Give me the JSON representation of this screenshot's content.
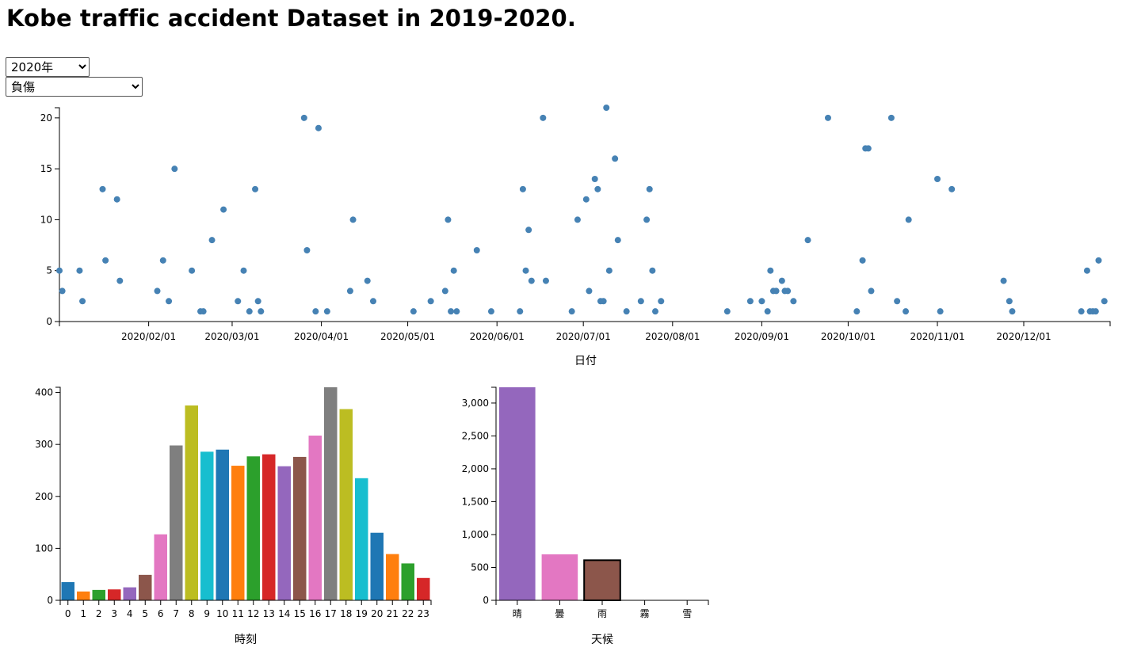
{
  "page": {
    "title": "Kobe traffic accident Dataset in 2019-2020."
  },
  "controls": {
    "year_select": {
      "selected": "2020年",
      "options": [
        "2020年"
      ]
    },
    "injury_select": {
      "selected": "負傷",
      "options": [
        "負傷"
      ]
    }
  },
  "chart_data": [
    {
      "type": "scatter",
      "xlabel": "日付",
      "ylabel": "",
      "xlim": [
        "2020-01-01",
        "2020-12-31"
      ],
      "ylim": [
        0,
        21
      ],
      "y_ticks": [
        0,
        5,
        10,
        15,
        20
      ],
      "x_tick_labels": [
        "2020/02/01",
        "2020/03/01",
        "2020/04/01",
        "2020/05/01",
        "2020/06/01",
        "2020/07/01",
        "2020/08/01",
        "2020/09/01",
        "2020/10/01",
        "2020/11/01",
        "2020/12/01"
      ],
      "point_color": "#4682b4",
      "points": [
        [
          "2020-01-01",
          5
        ],
        [
          "2020-01-02",
          3
        ],
        [
          "2020-01-08",
          5
        ],
        [
          "2020-01-09",
          2
        ],
        [
          "2020-01-16",
          13
        ],
        [
          "2020-01-17",
          6
        ],
        [
          "2020-01-21",
          12
        ],
        [
          "2020-01-22",
          4
        ],
        [
          "2020-02-04",
          3
        ],
        [
          "2020-02-06",
          6
        ],
        [
          "2020-02-08",
          2
        ],
        [
          "2020-02-10",
          15
        ],
        [
          "2020-02-16",
          5
        ],
        [
          "2020-02-19",
          1
        ],
        [
          "2020-02-20",
          1
        ],
        [
          "2020-02-23",
          8
        ],
        [
          "2020-02-27",
          11
        ],
        [
          "2020-03-03",
          2
        ],
        [
          "2020-03-05",
          5
        ],
        [
          "2020-03-07",
          1
        ],
        [
          "2020-03-09",
          13
        ],
        [
          "2020-03-10",
          2
        ],
        [
          "2020-03-11",
          1
        ],
        [
          "2020-03-26",
          20
        ],
        [
          "2020-03-27",
          7
        ],
        [
          "2020-03-30",
          1
        ],
        [
          "2020-03-31",
          19
        ],
        [
          "2020-04-03",
          1
        ],
        [
          "2020-04-11",
          3
        ],
        [
          "2020-04-12",
          10
        ],
        [
          "2020-04-17",
          4
        ],
        [
          "2020-04-19",
          2
        ],
        [
          "2020-05-03",
          1
        ],
        [
          "2020-05-09",
          2
        ],
        [
          "2020-05-14",
          3
        ],
        [
          "2020-05-15",
          10
        ],
        [
          "2020-05-16",
          1
        ],
        [
          "2020-05-17",
          5
        ],
        [
          "2020-05-18",
          1
        ],
        [
          "2020-05-25",
          7
        ],
        [
          "2020-05-30",
          1
        ],
        [
          "2020-06-09",
          1
        ],
        [
          "2020-06-10",
          13
        ],
        [
          "2020-06-11",
          5
        ],
        [
          "2020-06-12",
          9
        ],
        [
          "2020-06-13",
          4
        ],
        [
          "2020-06-17",
          20
        ],
        [
          "2020-06-18",
          4
        ],
        [
          "2020-06-27",
          1
        ],
        [
          "2020-06-29",
          10
        ],
        [
          "2020-07-02",
          12
        ],
        [
          "2020-07-03",
          3
        ],
        [
          "2020-07-05",
          14
        ],
        [
          "2020-07-06",
          13
        ],
        [
          "2020-07-07",
          2
        ],
        [
          "2020-07-08",
          2
        ],
        [
          "2020-07-09",
          21
        ],
        [
          "2020-07-10",
          5
        ],
        [
          "2020-07-12",
          16
        ],
        [
          "2020-07-13",
          8
        ],
        [
          "2020-07-16",
          1
        ],
        [
          "2020-07-21",
          2
        ],
        [
          "2020-07-23",
          10
        ],
        [
          "2020-07-24",
          13
        ],
        [
          "2020-07-25",
          5
        ],
        [
          "2020-07-26",
          1
        ],
        [
          "2020-07-28",
          2
        ],
        [
          "2020-08-20",
          1
        ],
        [
          "2020-08-28",
          2
        ],
        [
          "2020-09-01",
          2
        ],
        [
          "2020-09-03",
          1
        ],
        [
          "2020-09-04",
          5
        ],
        [
          "2020-09-05",
          3
        ],
        [
          "2020-09-06",
          3
        ],
        [
          "2020-09-08",
          4
        ],
        [
          "2020-09-09",
          3
        ],
        [
          "2020-09-10",
          3
        ],
        [
          "2020-09-12",
          2
        ],
        [
          "2020-09-17",
          8
        ],
        [
          "2020-09-24",
          20
        ],
        [
          "2020-10-04",
          1
        ],
        [
          "2020-10-06",
          6
        ],
        [
          "2020-10-07",
          17
        ],
        [
          "2020-10-08",
          17
        ],
        [
          "2020-10-09",
          3
        ],
        [
          "2020-10-16",
          20
        ],
        [
          "2020-10-18",
          2
        ],
        [
          "2020-10-21",
          1
        ],
        [
          "2020-10-22",
          10
        ],
        [
          "2020-11-01",
          14
        ],
        [
          "2020-11-02",
          1
        ],
        [
          "2020-11-06",
          13
        ],
        [
          "2020-11-24",
          4
        ],
        [
          "2020-11-26",
          2
        ],
        [
          "2020-11-27",
          1
        ],
        [
          "2020-12-21",
          1
        ],
        [
          "2020-12-23",
          5
        ],
        [
          "2020-12-24",
          1
        ],
        [
          "2020-12-25",
          1
        ],
        [
          "2020-12-26",
          1
        ],
        [
          "2020-12-27",
          6
        ],
        [
          "2020-12-29",
          2
        ]
      ]
    },
    {
      "type": "bar",
      "xlabel": "時刻",
      "ylabel": "",
      "ylim": [
        0,
        410
      ],
      "y_ticks": [
        0,
        100,
        200,
        300,
        400
      ],
      "categories": [
        "0",
        "1",
        "2",
        "3",
        "4",
        "5",
        "6",
        "7",
        "8",
        "9",
        "10",
        "11",
        "12",
        "13",
        "14",
        "15",
        "16",
        "17",
        "18",
        "19",
        "20",
        "21",
        "22",
        "23"
      ],
      "values": [
        35,
        17,
        20,
        21,
        25,
        49,
        127,
        298,
        375,
        286,
        290,
        259,
        277,
        281,
        258,
        276,
        317,
        410,
        368,
        235,
        130,
        89,
        71,
        43
      ],
      "colors": [
        "#1f77b4",
        "#ff7f0e",
        "#2ca02c",
        "#d62728",
        "#9467bd",
        "#8c564b",
        "#e377c2",
        "#7f7f7f",
        "#bcbd22",
        "#17becf",
        "#1f77b4",
        "#ff7f0e",
        "#2ca02c",
        "#d62728",
        "#9467bd",
        "#8c564b",
        "#e377c2",
        "#7f7f7f",
        "#bcbd22",
        "#17becf",
        "#1f77b4",
        "#ff7f0e",
        "#2ca02c",
        "#d62728"
      ]
    },
    {
      "type": "bar",
      "xlabel": "天候",
      "ylabel": "",
      "ylim": [
        0,
        3240
      ],
      "y_ticks": [
        0,
        500,
        1000,
        1500,
        2000,
        2500,
        3000
      ],
      "y_tick_labels": [
        "0",
        "500",
        "1,000",
        "1,500",
        "2,000",
        "2,500",
        "3,000"
      ],
      "categories": [
        "晴",
        "曇",
        "雨",
        "霧",
        "雪"
      ],
      "values": [
        3240,
        700,
        610,
        2,
        1
      ],
      "colors": [
        "#9467bd",
        "#e377c2",
        "#8c564b",
        "#7f7f7f",
        "#bcbd22"
      ],
      "highlighted_index": 2
    }
  ]
}
